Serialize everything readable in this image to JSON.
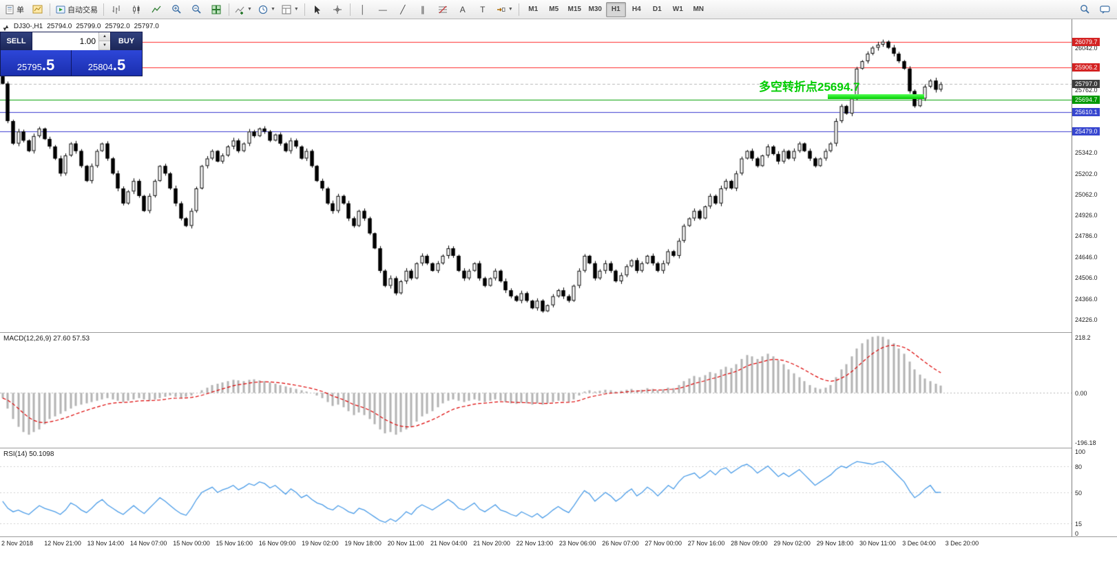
{
  "toolbar": {
    "new_order_label": "单",
    "autotrading_label": "自动交易",
    "text_tool": "A",
    "label_tool": "T",
    "timeframes": [
      "M1",
      "M5",
      "M15",
      "M30",
      "H1",
      "H4",
      "D1",
      "W1",
      "MN"
    ],
    "active_timeframe": "H1"
  },
  "symbol_info": {
    "symbol": "DJ30-,H1",
    "open": "25794.0",
    "high": "25799.0",
    "low": "25792.0",
    "close": "25797.0"
  },
  "trade_panel": {
    "sell_label": "SELL",
    "buy_label": "BUY",
    "volume": "1.00",
    "sell_price_main": "25795",
    "sell_price_big": ".5",
    "buy_price_main": "25804",
    "buy_price_big": ".5"
  },
  "annotation": {
    "text": "多空转折点25694.7",
    "color": "#00cc00"
  },
  "price_axis": {
    "ticks": [
      {
        "label": "26042.0",
        "value": 26042.0
      },
      {
        "label": "25762.0",
        "value": 25762.0
      },
      {
        "label": "25342.0",
        "value": 25342.0
      },
      {
        "label": "25202.0",
        "value": 25202.0
      },
      {
        "label": "25062.0",
        "value": 25062.0
      },
      {
        "label": "24926.0",
        "value": 24926.0
      },
      {
        "label": "24786.0",
        "value": 24786.0
      },
      {
        "label": "24646.0",
        "value": 24646.0
      },
      {
        "label": "24506.0",
        "value": 24506.0
      },
      {
        "label": "24366.0",
        "value": 24366.0
      },
      {
        "label": "24226.0",
        "value": 24226.0
      }
    ],
    "tags": [
      {
        "label": "26079.7",
        "value": 26079.7,
        "bg": "#d42222"
      },
      {
        "label": "25906.2",
        "value": 25906.2,
        "bg": "#d42222"
      },
      {
        "label": "25797.0",
        "value": 25797.0,
        "bg": "#3d3d3d"
      },
      {
        "label": "25694.7",
        "value": 25694.7,
        "bg": "#009900"
      },
      {
        "label": "25610.1",
        "value": 25610.1,
        "bg": "#3746cf"
      },
      {
        "label": "25479.0",
        "value": 25479.0,
        "bg": "#3746cf"
      }
    ]
  },
  "macd_panel": {
    "label": "MACD(12,26,9) 27.60 57.53",
    "axis_top": "218.2",
    "axis_zero": "0.00",
    "axis_bottom": "-196.18"
  },
  "rsi_panel": {
    "label": "RSI(14) 50.1098",
    "axis": [
      {
        "label": "100",
        "value": 100
      },
      {
        "label": "80",
        "value": 80
      },
      {
        "label": "50",
        "value": 50
      },
      {
        "label": "15",
        "value": 15
      },
      {
        "label": "0",
        "value": 0
      }
    ]
  },
  "time_axis": {
    "labels": [
      "2 Nov 2018",
      "12 Nov 21:00",
      "13 Nov 14:00",
      "14 Nov 07:00",
      "15 Nov 00:00",
      "15 Nov 16:00",
      "16 Nov 09:00",
      "19 Nov 02:00",
      "19 Nov 18:00",
      "20 Nov 11:00",
      "21 Nov 04:00",
      "21 Nov 20:00",
      "22 Nov 13:00",
      "23 Nov 06:00",
      "26 Nov 07:00",
      "27 Nov 00:00",
      "27 Nov 16:00",
      "28 Nov 09:00",
      "29 Nov 02:00",
      "29 Nov 18:00",
      "30 Nov 11:00",
      "3 Dec 04:00",
      "3 Dec 20:00"
    ]
  },
  "chart_data": [
    {
      "type": "candlestick",
      "title": "DJ30-,H1",
      "price_min": 24140,
      "price_max": 26230,
      "current_price": 25797.0,
      "levels": [
        {
          "value": 26079.7,
          "color": "#ff2a2a",
          "style": "solid"
        },
        {
          "value": 25906.2,
          "color": "#ff2a2a",
          "style": "solid"
        },
        {
          "value": 25797.0,
          "color": "#b8b8b8",
          "style": "dashed",
          "role": "current-price"
        },
        {
          "value": 25694.7,
          "color": "#00a000",
          "style": "solid",
          "role": "pivot"
        },
        {
          "value": 25610.1,
          "color": "#3a3ad0",
          "style": "solid"
        },
        {
          "value": 25479.0,
          "color": "#3a3ad0",
          "style": "solid"
        }
      ],
      "highlight_segment": {
        "value": 25694.7,
        "color": "#00e400"
      },
      "closes": [
        25800,
        25550,
        25400,
        25480,
        25420,
        25350,
        25450,
        25500,
        25430,
        25380,
        25300,
        25200,
        25320,
        25400,
        25350,
        25250,
        25150,
        25250,
        25350,
        25400,
        25300,
        25200,
        25100,
        25000,
        25080,
        25150,
        25050,
        24950,
        25050,
        25150,
        25250,
        25200,
        25100,
        25000,
        24900,
        24850,
        24950,
        25100,
        25250,
        25300,
        25350,
        25280,
        25320,
        25380,
        25420,
        25350,
        25400,
        25480,
        25450,
        25500,
        25480,
        25420,
        25460,
        25400,
        25350,
        25420,
        25380,
        25300,
        25350,
        25250,
        25150,
        25100,
        25000,
        24950,
        25050,
        25000,
        24900,
        24850,
        24950,
        24900,
        24800,
        24700,
        24550,
        24450,
        24500,
        24400,
        24480,
        24550,
        24500,
        24600,
        24650,
        24600,
        24550,
        24600,
        24650,
        24700,
        24650,
        24550,
        24500,
        24550,
        24600,
        24500,
        24450,
        24500,
        24550,
        24480,
        24420,
        24380,
        24350,
        24400,
        24350,
        24300,
        24350,
        24280,
        24320,
        24380,
        24420,
        24380,
        24350,
        24450,
        24550,
        24650,
        24600,
        24500,
        24550,
        24600,
        24550,
        24480,
        24520,
        24580,
        24620,
        24550,
        24600,
        24650,
        24600,
        24550,
        24600,
        24680,
        24650,
        24750,
        24850,
        24900,
        24950,
        24900,
        24980,
        25050,
        25000,
        25100,
        25150,
        25100,
        25200,
        25300,
        25350,
        25300,
        25250,
        25320,
        25380,
        25330,
        25280,
        25350,
        25300,
        25350,
        25400,
        25350,
        25300,
        25250,
        25300,
        25350,
        25400,
        25550,
        25650,
        25600,
        25700,
        25900,
        25950,
        26000,
        26040,
        26060,
        26080,
        26040,
        26000,
        25950,
        25900,
        25750,
        25650,
        25700,
        25780,
        25820,
        25760,
        25797
      ]
    },
    {
      "type": "bar",
      "name": "MACD(12,26,9)",
      "current_values": "27.60 57.53",
      "range": [
        -210,
        230
      ],
      "bar_color": "#b4b4b4",
      "signal_color": "#dd0000",
      "values": [
        -20,
        -60,
        -100,
        -130,
        -150,
        -160,
        -150,
        -140,
        -120,
        -100,
        -90,
        -80,
        -70,
        -60,
        -50,
        -45,
        -40,
        -35,
        -30,
        -25,
        -20,
        -25,
        -30,
        -35,
        -30,
        -25,
        -20,
        -25,
        -30,
        -25,
        -20,
        -15,
        -10,
        -15,
        -20,
        -15,
        -10,
        0,
        10,
        20,
        30,
        35,
        40,
        45,
        50,
        48,
        45,
        50,
        52,
        48,
        45,
        40,
        35,
        30,
        25,
        20,
        15,
        10,
        5,
        0,
        -10,
        -20,
        -35,
        -50,
        -45,
        -55,
        -70,
        -85,
        -75,
        -85,
        -100,
        -120,
        -140,
        -155,
        -150,
        -160,
        -150,
        -140,
        -130,
        -110,
        -90,
        -80,
        -70,
        -55,
        -40,
        -30,
        -25,
        -30,
        -35,
        -30,
        -25,
        -30,
        -35,
        -30,
        -25,
        -30,
        -35,
        -40,
        -42,
        -38,
        -40,
        -45,
        -40,
        -45,
        -40,
        -35,
        -30,
        -32,
        -35,
        -25,
        -10,
        5,
        10,
        5,
        8,
        12,
        10,
        5,
        8,
        12,
        15,
        10,
        12,
        18,
        15,
        10,
        14,
        20,
        18,
        30,
        45,
        55,
        65,
        60,
        68,
        80,
        75,
        90,
        100,
        95,
        110,
        130,
        145,
        140,
        130,
        140,
        150,
        140,
        125,
        110,
        90,
        75,
        60,
        45,
        30,
        20,
        15,
        20,
        30,
        60,
        90,
        110,
        140,
        170,
        190,
        205,
        215,
        218,
        215,
        205,
        190,
        170,
        150,
        120,
        90,
        70,
        55,
        45,
        35,
        28
      ]
    },
    {
      "type": "line",
      "name": "RSI(14)",
      "current_value": 50.1098,
      "range": [
        0,
        100
      ],
      "grid_levels": [
        80,
        50,
        15
      ],
      "color": "#4a9ce8",
      "values": [
        40,
        32,
        28,
        30,
        27,
        25,
        30,
        35,
        32,
        30,
        28,
        25,
        30,
        38,
        35,
        30,
        27,
        32,
        38,
        42,
        36,
        32,
        28,
        25,
        30,
        35,
        30,
        26,
        32,
        38,
        44,
        40,
        35,
        30,
        26,
        24,
        32,
        42,
        50,
        53,
        56,
        50,
        53,
        55,
        58,
        53,
        56,
        60,
        58,
        62,
        60,
        55,
        58,
        53,
        48,
        54,
        50,
        44,
        47,
        42,
        38,
        36,
        32,
        30,
        35,
        32,
        28,
        26,
        32,
        30,
        26,
        22,
        18,
        16,
        20,
        17,
        22,
        28,
        25,
        32,
        36,
        33,
        30,
        34,
        38,
        42,
        38,
        32,
        30,
        34,
        38,
        31,
        28,
        32,
        36,
        30,
        28,
        25,
        23,
        28,
        25,
        22,
        26,
        21,
        25,
        30,
        34,
        30,
        27,
        35,
        44,
        52,
        48,
        40,
        45,
        50,
        46,
        40,
        44,
        50,
        54,
        46,
        50,
        56,
        52,
        46,
        52,
        58,
        54,
        62,
        68,
        70,
        72,
        66,
        70,
        75,
        70,
        76,
        78,
        72,
        76,
        80,
        82,
        78,
        72,
        76,
        80,
        74,
        68,
        72,
        68,
        72,
        76,
        70,
        64,
        58,
        62,
        66,
        70,
        76,
        80,
        78,
        82,
        85,
        84,
        83,
        82,
        84,
        85,
        80,
        74,
        68,
        62,
        52,
        44,
        48,
        54,
        58,
        50,
        50.1
      ]
    }
  ]
}
